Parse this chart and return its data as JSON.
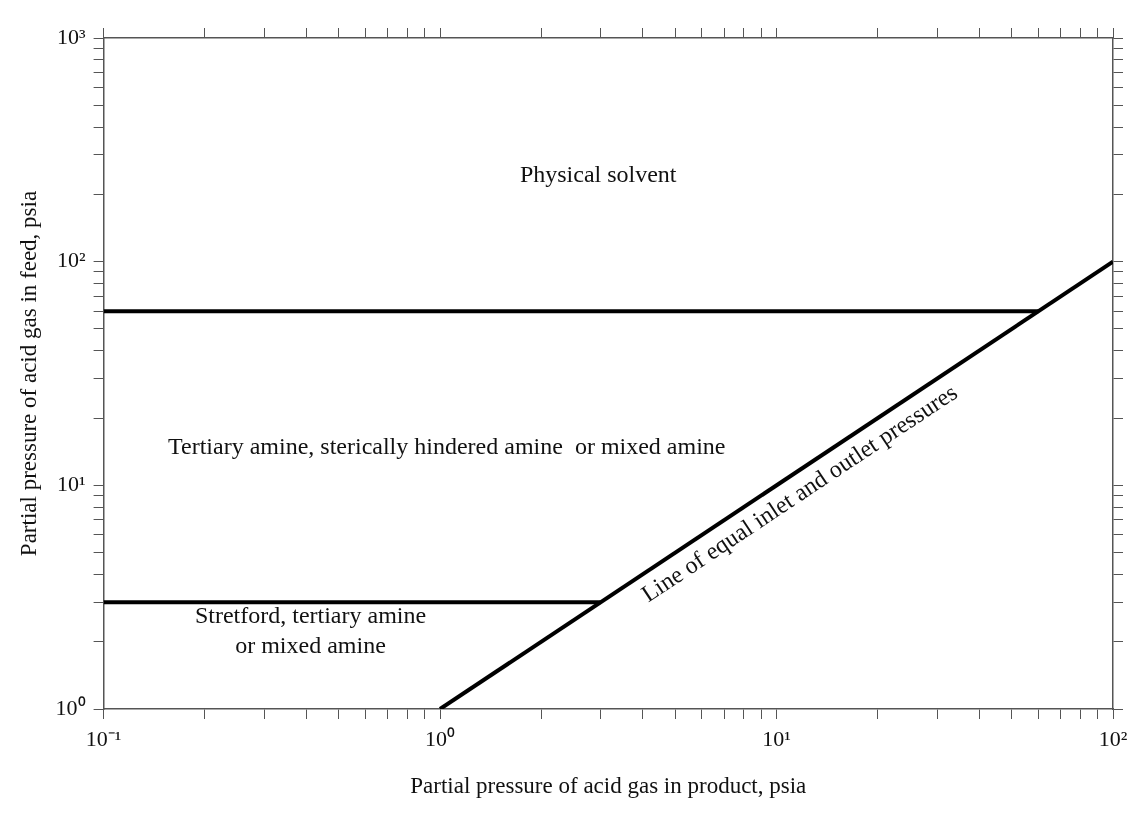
{
  "chart_data": {
    "type": "line",
    "xlabel": "Partial pressure of acid gas in product, psia",
    "ylabel": "Partial pressure of acid gas in feed, psia",
    "log": "xy",
    "grid": false,
    "legend": false,
    "marker": "none",
    "line_style": "solid",
    "xlim": [
      0.1,
      100
    ],
    "ylim": [
      1,
      1000
    ],
    "xticks": [
      {
        "value": 0.1,
        "label": "10⁻¹"
      },
      {
        "value": 0.2,
        "label": null
      },
      {
        "value": 0.3,
        "label": null
      },
      {
        "value": 0.4,
        "label": null
      },
      {
        "value": 0.5,
        "label": null
      },
      {
        "value": 0.6,
        "label": null
      },
      {
        "value": 0.7,
        "label": null
      },
      {
        "value": 0.8,
        "label": null
      },
      {
        "value": 0.9,
        "label": null
      },
      {
        "value": 1,
        "label": "10⁰"
      },
      {
        "value": 2,
        "label": null
      },
      {
        "value": 3,
        "label": null
      },
      {
        "value": 4,
        "label": null
      },
      {
        "value": 5,
        "label": null
      },
      {
        "value": 6,
        "label": null
      },
      {
        "value": 7,
        "label": null
      },
      {
        "value": 8,
        "label": null
      },
      {
        "value": 9,
        "label": null
      },
      {
        "value": 10,
        "label": "10¹"
      },
      {
        "value": 20,
        "label": null
      },
      {
        "value": 30,
        "label": null
      },
      {
        "value": 40,
        "label": null
      },
      {
        "value": 50,
        "label": null
      },
      {
        "value": 60,
        "label": null
      },
      {
        "value": 70,
        "label": null
      },
      {
        "value": 80,
        "label": null
      },
      {
        "value": 90,
        "label": null
      },
      {
        "value": 100,
        "label": "10²"
      }
    ],
    "yticks": [
      {
        "value": 1,
        "label": "10⁰"
      },
      {
        "value": 2,
        "label": null
      },
      {
        "value": 3,
        "label": null
      },
      {
        "value": 4,
        "label": null
      },
      {
        "value": 5,
        "label": null
      },
      {
        "value": 6,
        "label": null
      },
      {
        "value": 7,
        "label": null
      },
      {
        "value": 8,
        "label": null
      },
      {
        "value": 9,
        "label": null
      },
      {
        "value": 10,
        "label": "10¹"
      },
      {
        "value": 20,
        "label": null
      },
      {
        "value": 30,
        "label": null
      },
      {
        "value": 40,
        "label": null
      },
      {
        "value": 50,
        "label": null
      },
      {
        "value": 60,
        "label": null
      },
      {
        "value": 70,
        "label": null
      },
      {
        "value": 80,
        "label": null
      },
      {
        "value": 90,
        "label": null
      },
      {
        "value": 100,
        "label": "10²"
      },
      {
        "value": 200,
        "label": null
      },
      {
        "value": 300,
        "label": null
      },
      {
        "value": 400,
        "label": null
      },
      {
        "value": 500,
        "label": null
      },
      {
        "value": 600,
        "label": null
      },
      {
        "value": 700,
        "label": null
      },
      {
        "value": 800,
        "label": null
      },
      {
        "value": 900,
        "label": null
      },
      {
        "value": 1000,
        "label": "10³"
      }
    ],
    "series": [
      {
        "color": "#000000",
        "x": [
          0.1,
          60
        ],
        "values": [
          60,
          60
        ]
      },
      {
        "color": "#000000",
        "x": [
          0.1,
          3
        ],
        "values": [
          3,
          3
        ]
      },
      {
        "color": "#000000",
        "x": [
          1,
          100
        ],
        "values": [
          1,
          100
        ]
      }
    ],
    "annotations": [
      "Physical solvent",
      "Tertiary amine, sterically hindered amine  or mixed amine",
      "Stretford, tertiary amine\nor mixed amine",
      "Line of equal inlet and outlet pressures"
    ]
  }
}
